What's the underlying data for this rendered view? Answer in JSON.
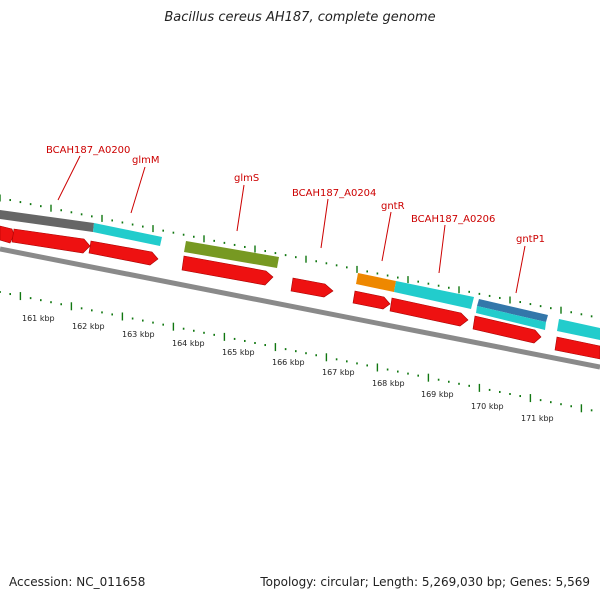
{
  "title": "Bacillus cereus AH187, complete genome",
  "footer": {
    "accession": "Accession: NC_011658",
    "topology": "Topology: circular; Length: 5,269,030 bp; Genes: 5,569"
  },
  "colors": {
    "label": "#cc0000",
    "leader": "#cc0000",
    "tick": "#117711",
    "backbone": "#8a8a8a",
    "cds_arrow": "#ee1111",
    "cds_edge": "#aa0000",
    "gene_grey": "#666666",
    "gene_cyan": "#22cccc",
    "gene_olive": "#779922",
    "gene_orange": "#ee8800",
    "gene_blue": "#3377aa",
    "kbp_text": "#222222"
  },
  "gene_labels": [
    {
      "text": "BCAH187_A0200"
    },
    {
      "text": "glmM"
    },
    {
      "text": "glmS"
    },
    {
      "text": "BCAH187_A0204"
    },
    {
      "text": "gntR"
    },
    {
      "text": "BCAH187_A0206"
    },
    {
      "text": "gntP1"
    }
  ],
  "kbp_labels": [
    "161 kbp",
    "162 kbp",
    "163 kbp",
    "164 kbp",
    "165 kbp",
    "166 kbp",
    "167 kbp",
    "168 kbp",
    "169 kbp",
    "170 kbp",
    "171 kbp"
  ]
}
